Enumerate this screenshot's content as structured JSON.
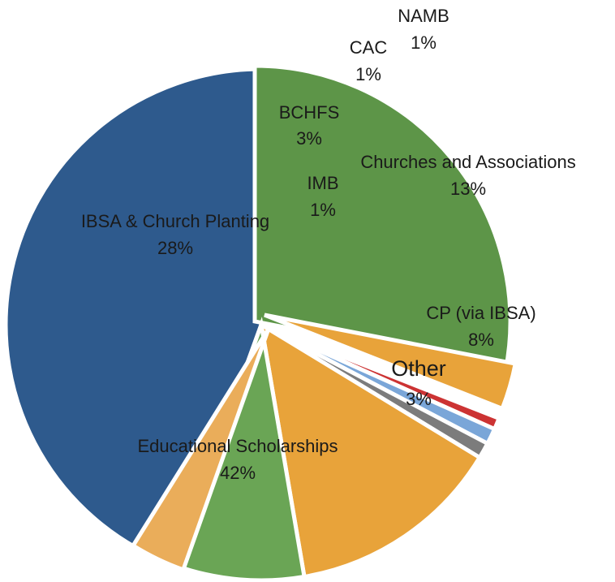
{
  "chart_data": {
    "type": "pie",
    "title": "",
    "series": [
      {
        "values": [
          42,
          28,
          3,
          1,
          1,
          1,
          13,
          8,
          3
        ],
        "categories": [
          "Educational Scholarships",
          "IBSA & Church Planting",
          "BCHFS",
          "IMB",
          "CAC",
          "NAMB",
          "Churches and Associations",
          "CP (via IBSA)",
          "Other"
        ]
      }
    ],
    "slices": [
      {
        "label": "Educational Scholarships",
        "pct_label": "42%",
        "color": "#2e5a8d"
      },
      {
        "label": "IBSA & Church Planting",
        "pct_label": "28%",
        "color": "#5d9548"
      },
      {
        "label": "BCHFS",
        "pct_label": "3%",
        "color": "#e8a33a"
      },
      {
        "label": "IMB",
        "pct_label": "1%",
        "color": "#cc3333"
      },
      {
        "label": "CAC",
        "pct_label": "1%",
        "color": "#7aa6d8"
      },
      {
        "label": "NAMB",
        "pct_label": "1%",
        "color": "#7c7c7c"
      },
      {
        "label": "Churches and Associations",
        "pct_label": "13%",
        "color": "#e8a33a"
      },
      {
        "label": "CP (via IBSA)",
        "pct_label": "8%",
        "color": "#6aa555"
      },
      {
        "label": "Other",
        "pct_label": "3%",
        "color": "#eaad5a"
      }
    ],
    "legend": "none",
    "labels_inside": true
  }
}
